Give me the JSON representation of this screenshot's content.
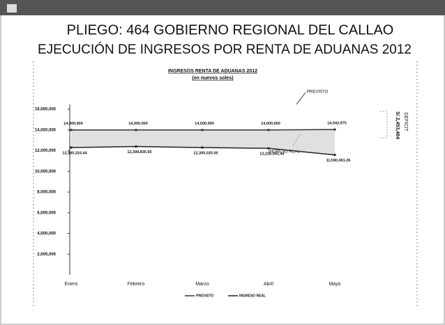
{
  "slide": {
    "title_line1": "PLIEGO: 464 GOBIERNO REGIONAL DEL CALLAO",
    "title_line2": "EJECUCIÓN DE INGRESOS POR RENTA DE ADUANAS 2012"
  },
  "chart_data": {
    "type": "line",
    "title": "INGRESOS RENTA DE ADUANAS 2012",
    "subtitle": "(en nuevos soles)",
    "categories": [
      "Enero",
      "Febrero",
      "Marzo",
      "Abril",
      "Mayo"
    ],
    "series": [
      {
        "name": "PREVISTO",
        "color": "#333333",
        "values": [
          14000000,
          14000000,
          14000000,
          14000000,
          14043975
        ],
        "value_labels": [
          "14,000,000",
          "14,000,000",
          "14,000,000",
          "14,000,000",
          "14,043,975"
        ]
      },
      {
        "name": "INGRESO REAL",
        "color": "#222222",
        "values": [
          12300324.44,
          12399835.93,
          12300025.0,
          12226941.44,
          11590491.26
        ],
        "value_labels": [
          "12,300,324.44",
          "12,399,835.93",
          "12,300,025.00",
          "12,226,941.44",
          "11,590,491.26"
        ]
      }
    ],
    "ylim": [
      0,
      16000000
    ],
    "yticks": [
      {
        "value": 2000000,
        "label": "2,000,000"
      },
      {
        "value": 4000000,
        "label": "4,000,000"
      },
      {
        "value": 6000000,
        "label": "6,000,000"
      },
      {
        "value": 8000000,
        "label": "8,000,000"
      },
      {
        "value": 10000000,
        "label": "10,000,000"
      },
      {
        "value": 12000000,
        "label": "12,000,000"
      },
      {
        "value": 14000000,
        "label": "14,000,000"
      },
      {
        "value": 16000000,
        "label": "16,000,000"
      }
    ],
    "annotations": [
      "PREVISTO",
      "INGRESO REAL",
      "DEFICIT",
      "S/ 2,453,484"
    ],
    "legend": "bottom",
    "band_color": "#d8d8d8"
  }
}
